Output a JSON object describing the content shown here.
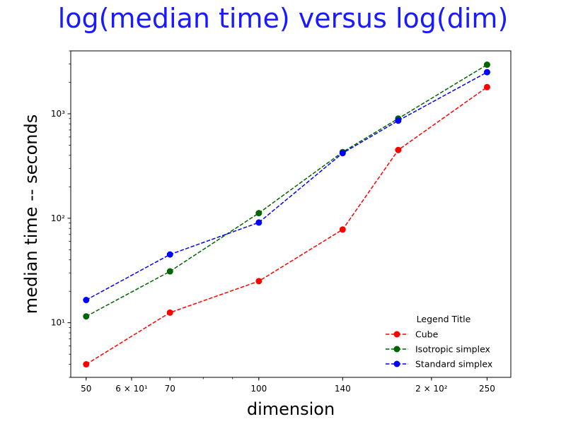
{
  "chart_data": {
    "type": "line",
    "title": "log(median time) versus log(dim)",
    "xlabel": "dimension",
    "ylabel": "median time -- seconds",
    "x_scale": "log",
    "y_scale": "log",
    "xlim": [
      47,
      275
    ],
    "ylim": [
      3.0,
      4000
    ],
    "x": [
      50,
      70,
      100,
      140,
      175,
      250
    ],
    "x_tick_labels": [
      {
        "value": 50,
        "text": "50"
      },
      {
        "value": 60,
        "text": "6 × 10¹"
      },
      {
        "value": 70,
        "text": "70"
      },
      {
        "value": 100,
        "text": "100"
      },
      {
        "value": 140,
        "text": "140"
      },
      {
        "value": 200,
        "text": "2 × 10²"
      },
      {
        "value": 250,
        "text": "250"
      }
    ],
    "y_tick_labels": [
      {
        "value": 10,
        "text": "10¹"
      },
      {
        "value": 100,
        "text": "10²"
      },
      {
        "value": 1000,
        "text": "10³"
      }
    ],
    "legend": {
      "title": "Legend Title",
      "placement": "lower-right"
    },
    "grid": false,
    "series": [
      {
        "name": "Cube",
        "color": "#ff0000",
        "values": [
          4.0,
          12.5,
          25,
          78,
          450,
          1800
        ]
      },
      {
        "name": "Isotropic simplex",
        "color": "#006400",
        "values": [
          11.5,
          31,
          112,
          430,
          900,
          2950
        ]
      },
      {
        "name": "Standard simplex",
        "color": "#0000ff",
        "values": [
          16.5,
          45,
          91,
          420,
          860,
          2500
        ]
      }
    ],
    "marker": "circle",
    "line_style": "dashed"
  }
}
